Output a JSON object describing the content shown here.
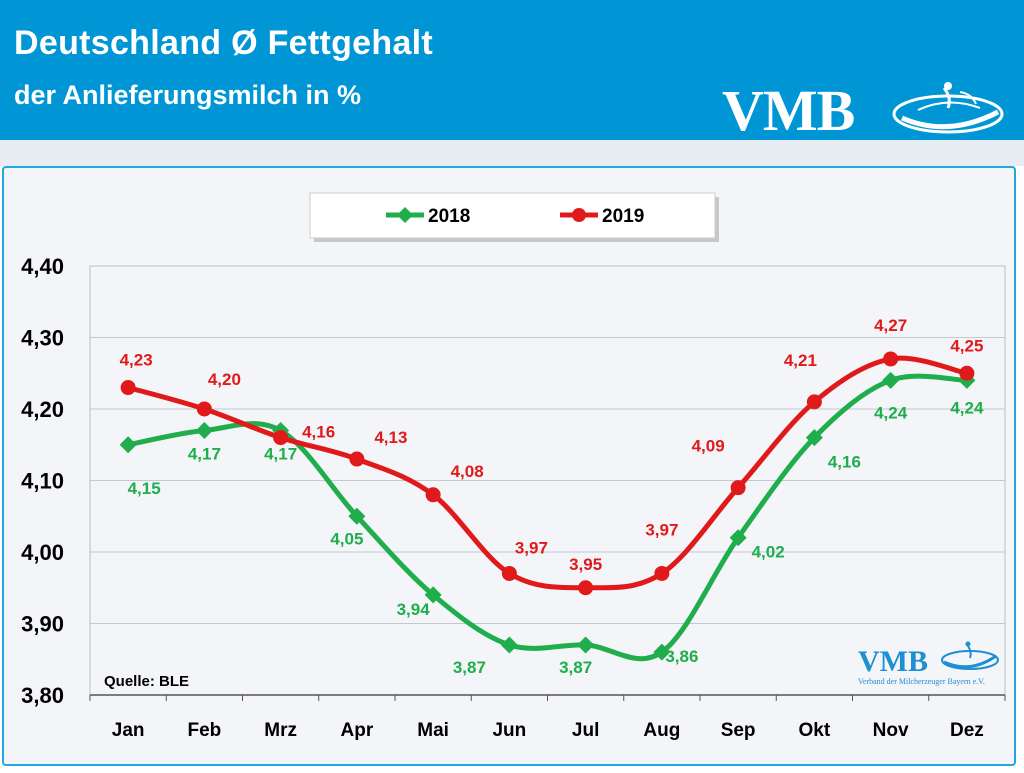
{
  "header": {
    "title": "Deutschland Ø Fettgehalt",
    "subtitle": "der Anlieferungsmilch in %",
    "logo_text": "VMB"
  },
  "chart_data": {
    "type": "line",
    "categories": [
      "Jan",
      "Feb",
      "Mrz",
      "Apr",
      "Mai",
      "Jun",
      "Jul",
      "Aug",
      "Sep",
      "Okt",
      "Nov",
      "Dez"
    ],
    "series": [
      {
        "name": "2018",
        "color": "#1fae4b",
        "values": [
          4.15,
          4.17,
          4.17,
          4.05,
          3.94,
          3.87,
          3.87,
          3.86,
          4.02,
          4.16,
          4.24,
          4.24
        ],
        "labels": [
          "4,15",
          "4,17",
          "4,17",
          "4,05",
          "3,94",
          "3,87",
          "3,87",
          "3,86",
          "4,02",
          "4,16",
          "4,24",
          "4,24"
        ]
      },
      {
        "name": "2019",
        "color": "#e0191a",
        "values": [
          4.23,
          4.2,
          4.16,
          4.13,
          4.08,
          3.97,
          3.95,
          3.97,
          4.09,
          4.21,
          4.27,
          4.25
        ],
        "labels": [
          "4,23",
          "4,20",
          "4,16",
          "4,13",
          "4,08",
          "3,97",
          "3,95",
          "3,97",
          "4,09",
          "4,21",
          "4,27",
          "4,25"
        ]
      }
    ],
    "yticks": [
      3.8,
      3.9,
      4.0,
      4.1,
      4.2,
      4.3,
      4.4
    ],
    "ytick_labels": [
      "3,80",
      "3,90",
      "4,00",
      "4,10",
      "4,20",
      "4,30",
      "4,40"
    ],
    "ylim": [
      3.8,
      4.4
    ],
    "grid": true,
    "legend_position": "top-center",
    "source": "Quelle: BLE",
    "watermark": {
      "text": "VMB",
      "subtext": "Verband der Milcherzeuger Bayern e.V."
    }
  }
}
